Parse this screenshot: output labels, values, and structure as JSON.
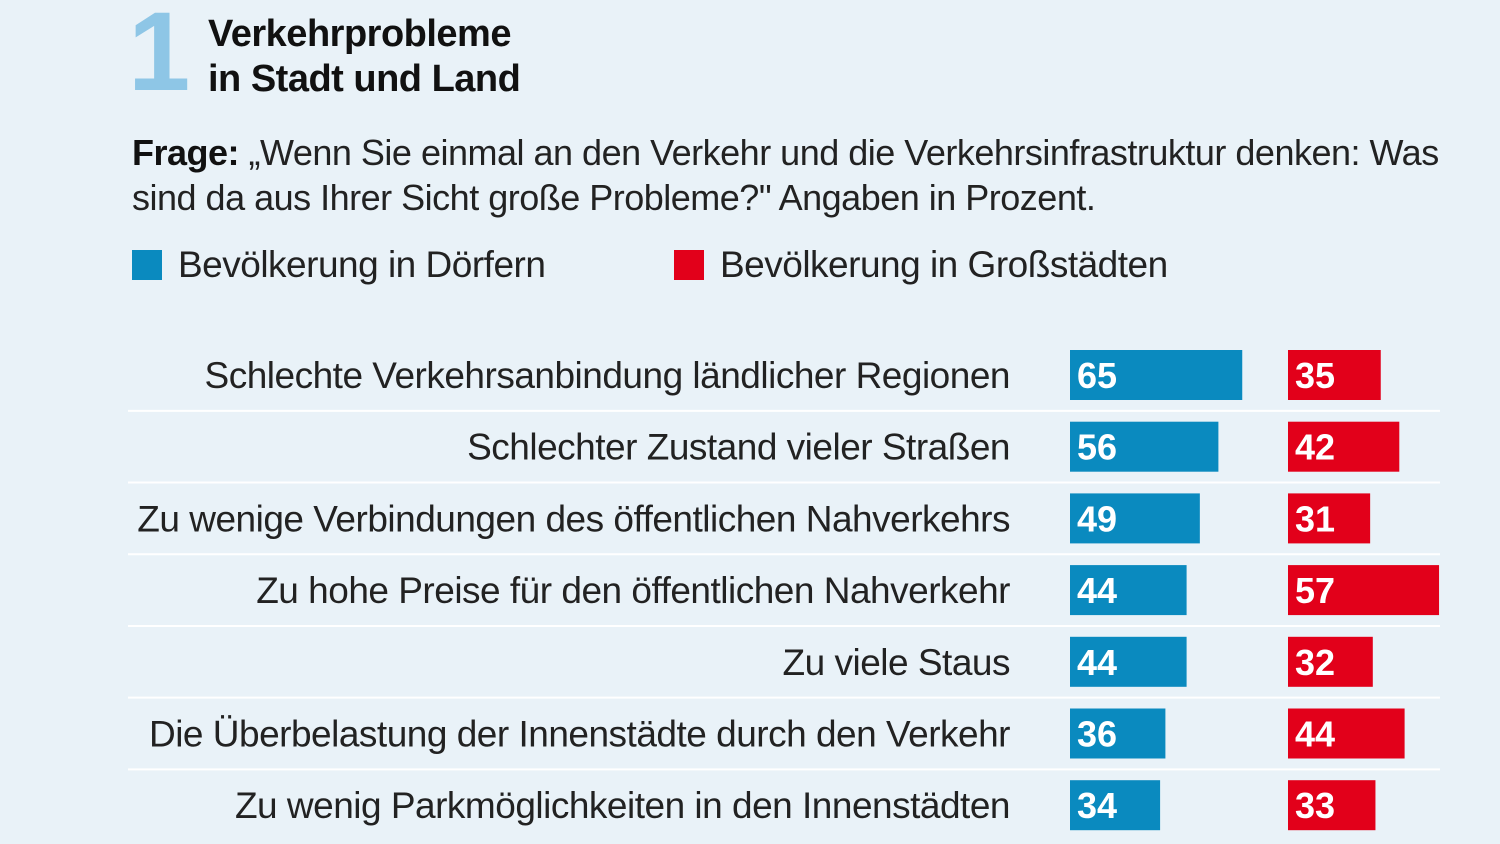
{
  "header": {
    "number": "1",
    "title_line1": "Verkehrprobleme",
    "title_line2": "in Stadt und Land"
  },
  "question": {
    "label": "Frage:",
    "text": " „Wenn Sie einmal an den Verkehr und die Verkehrsinfrastruktur denken: Was sind da aus Ihrer Sicht große Probleme?\" Angaben in Prozent."
  },
  "legend": [
    {
      "label": "Bevölkerung in Dörfern",
      "color": "#0a8abf"
    },
    {
      "label": "Bevölkerung in Großstädten",
      "color": "#e2001a"
    }
  ],
  "chart_data": {
    "type": "bar",
    "orientation": "horizontal",
    "title": "Verkehrprobleme in Stadt und Land",
    "unit": "Prozent",
    "categories": [
      "Schlechte Verkehrsanbindung ländlicher Regionen",
      "Schlechter Zustand vieler Straßen",
      "Zu wenige Verbindungen des öffentlichen Nahverkehrs",
      "Zu hohe Preise für den öffentlichen Nahverkehr",
      "Zu viele Staus",
      "Die Überbelastung der Innenstädte durch den Verkehr",
      "Zu wenig Parkmöglichkeiten in den Innenstädten"
    ],
    "series": [
      {
        "name": "Bevölkerung in Dörfern",
        "color": "#0a8abf",
        "values": [
          65,
          56,
          49,
          44,
          44,
          36,
          34
        ]
      },
      {
        "name": "Bevölkerung in Großstädten",
        "color": "#e2001a",
        "values": [
          35,
          42,
          31,
          57,
          32,
          44,
          33
        ]
      }
    ]
  }
}
